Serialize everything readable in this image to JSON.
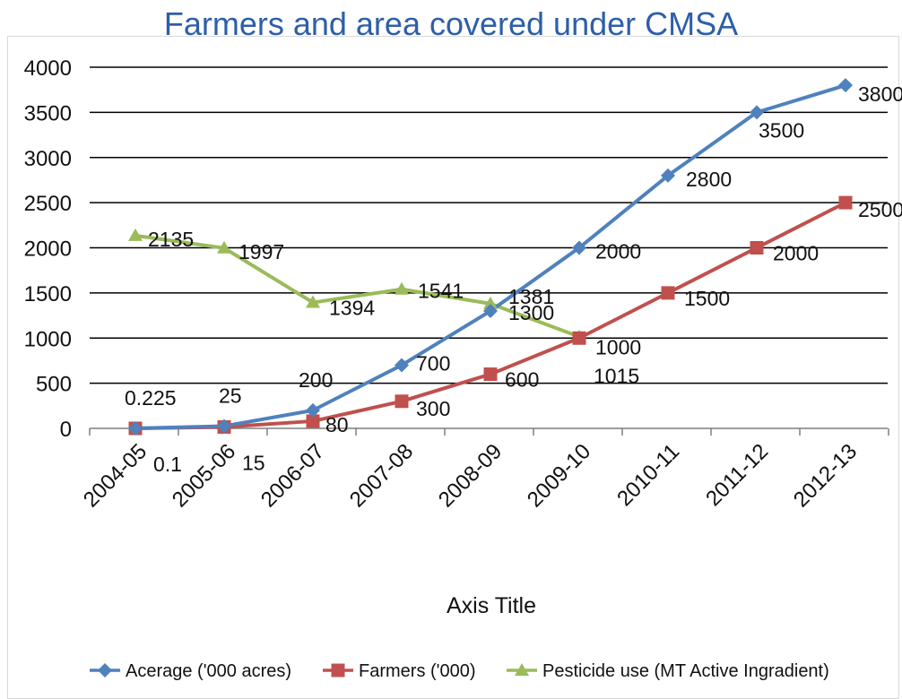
{
  "chart_data": {
    "type": "line",
    "title": "Farmers and area covered under CMSA",
    "xlabel": "Axis Title",
    "ylabel": "",
    "ylim": [
      0,
      4000
    ],
    "yticks": [
      "0",
      "500",
      "1000",
      "1500",
      "2000",
      "2500",
      "3000",
      "3500",
      "4000"
    ],
    "grid": "horizontal",
    "legend_position": "bottom",
    "categories": [
      "2004-05",
      "2005-06",
      "2006-07",
      "2007-08",
      "2008-09",
      "2009-10",
      "2010-11",
      "2011-12",
      "2012-13"
    ],
    "series": [
      {
        "name": "Acerage ('000 acres)",
        "color": "#4f81bd",
        "marker": "diamond",
        "values": [
          0.225,
          25,
          200,
          700,
          1300,
          2000,
          2800,
          3500,
          3800
        ],
        "labels": [
          "0.225",
          "25",
          "200",
          "700",
          "1300",
          "2000",
          "2800",
          "3500",
          "3800"
        ]
      },
      {
        "name": "Farmers ('000)",
        "color": "#c0504d",
        "marker": "square",
        "values": [
          0.1,
          15,
          80,
          300,
          600,
          1000,
          1500,
          2000,
          2500
        ],
        "labels": [
          "0.1",
          "15",
          "80",
          "300",
          "600",
          "1000",
          "1500",
          "2000",
          "2500"
        ]
      },
      {
        "name": "Pesticide use (MT Active Ingradient)",
        "color": "#9bbb59",
        "marker": "triangle",
        "values": [
          2135,
          1997,
          1394,
          1541,
          1381,
          1015,
          null,
          null,
          null
        ],
        "labels": [
          "2135",
          "1997",
          "1394",
          "1541",
          "1381",
          "1015",
          null,
          null,
          null
        ]
      }
    ]
  }
}
